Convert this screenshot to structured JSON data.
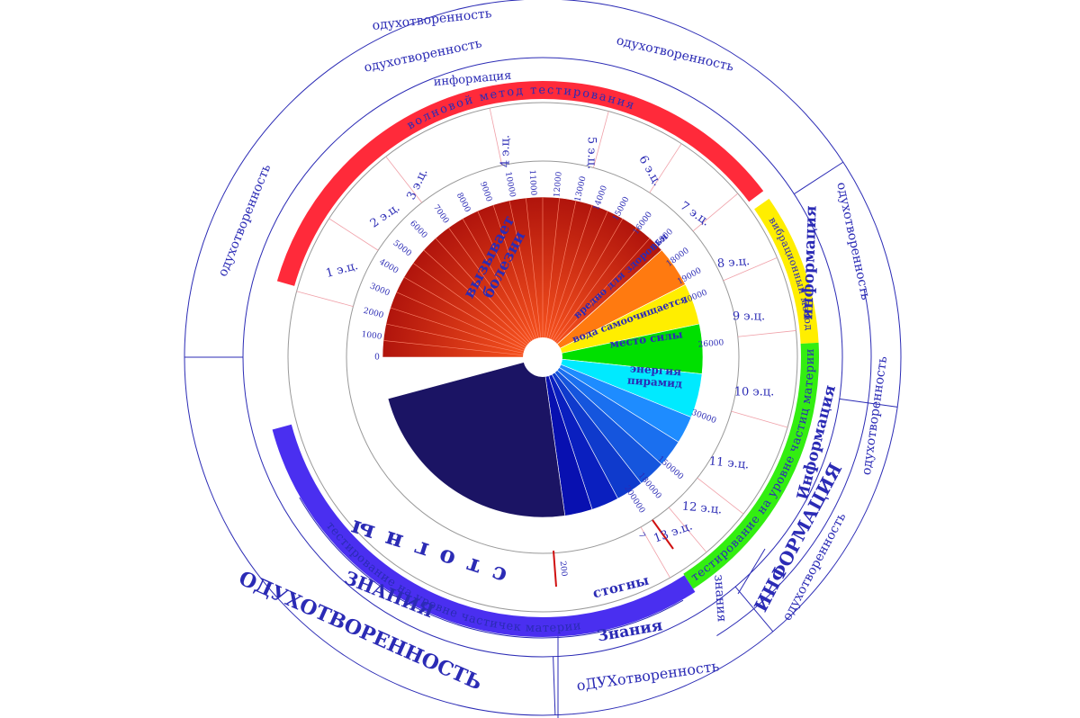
{
  "segments": [
    {
      "label": [
        "вызывает",
        "болезни"
      ],
      "color": "#c01a0e"
    },
    {
      "label": [
        "вредно для здоровья"
      ],
      "color": "#ff7a10"
    },
    {
      "label": [
        "вода самоочищается"
      ],
      "color": "#ffee00"
    },
    {
      "label": [
        "место силы"
      ],
      "color": "#00e000"
    },
    {
      "label": [
        "энергия",
        "пирамид"
      ],
      "color": "#00eaff"
    }
  ],
  "scale_labels": [
    "0",
    "1000",
    "2000",
    "3000",
    "4000",
    "5000",
    "6000",
    "7000",
    "8000",
    "9000",
    "10000",
    "11000",
    "12000",
    "13000",
    "14000",
    "15000",
    "16000",
    "17000",
    "18000",
    "19000",
    "20000",
    "26000",
    "30000",
    "150000",
    "180000",
    "200000",
    "7",
    "200"
  ],
  "era_labels": [
    "1 э.ц.",
    "2 э.ц.",
    "3 э.ц.",
    "4 э.ц.",
    "5 э.ц.",
    "6 э.ц.",
    "7 э.ц.",
    "8 э.ц.",
    "9 э.ц.",
    "10 э.ц.",
    "11 э.ц.",
    "12 э.ц.",
    "13 э.ц."
  ],
  "bands": [
    {
      "label": "волновой метод тестирования",
      "color": "#ff2a3a"
    },
    {
      "label": "вибрационный метод",
      "color": "#ffee00"
    },
    {
      "label": "тестирование на уровне частиц материи",
      "color": "#33ee11"
    },
    {
      "label": "тестирование на уровне частичек материи",
      "color": "#4a2ff0"
    }
  ],
  "stogny": [
    "стогны",
    "стогны"
  ],
  "outer_labels": [
    "одухотворенность",
    "одухотворенность",
    "одухотворенность",
    "одухотворенность",
    "одухотворенность",
    "одухотворенность",
    "одухотворенность",
    "ОДУХОТВОРЕННОСТЬ",
    "оДУХотворенность",
    "информация",
    "информация",
    "Информация",
    "ИНФОРМАЦИЯ",
    "ЗНАНИЯ",
    "Знания",
    "знания"
  ]
}
